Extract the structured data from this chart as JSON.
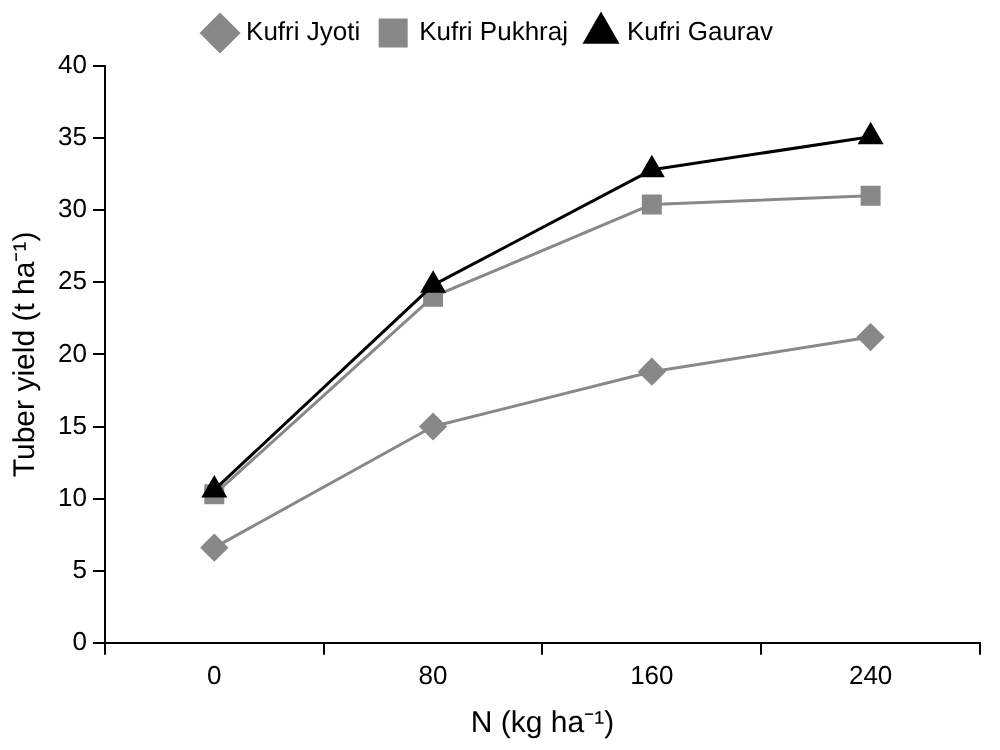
{
  "chart_data": {
    "type": "line",
    "xlabel": "N (kg ha⁻¹)",
    "ylabel": "Tuber yield (t ha⁻¹)",
    "categories": [
      "0",
      "80",
      "160",
      "240"
    ],
    "series": [
      {
        "name": "Kufri Jyoti",
        "color": "#888888",
        "marker": "diamond",
        "values": [
          6.6,
          15,
          18.8,
          21.2
        ]
      },
      {
        "name": "Kufri Pukhraj",
        "color": "#888888",
        "marker": "square",
        "values": [
          10.3,
          24,
          30.4,
          31
        ]
      },
      {
        "name": "Kufri Gaurav",
        "color": "#000000",
        "marker": "triangle",
        "values": [
          10.6,
          24.8,
          32.8,
          35.1
        ]
      }
    ],
    "ylim": [
      0,
      40
    ],
    "yticks": [
      0,
      5,
      10,
      15,
      20,
      25,
      30,
      35,
      40
    ],
    "grid": false,
    "legend": "top",
    "line_style": "solid"
  }
}
